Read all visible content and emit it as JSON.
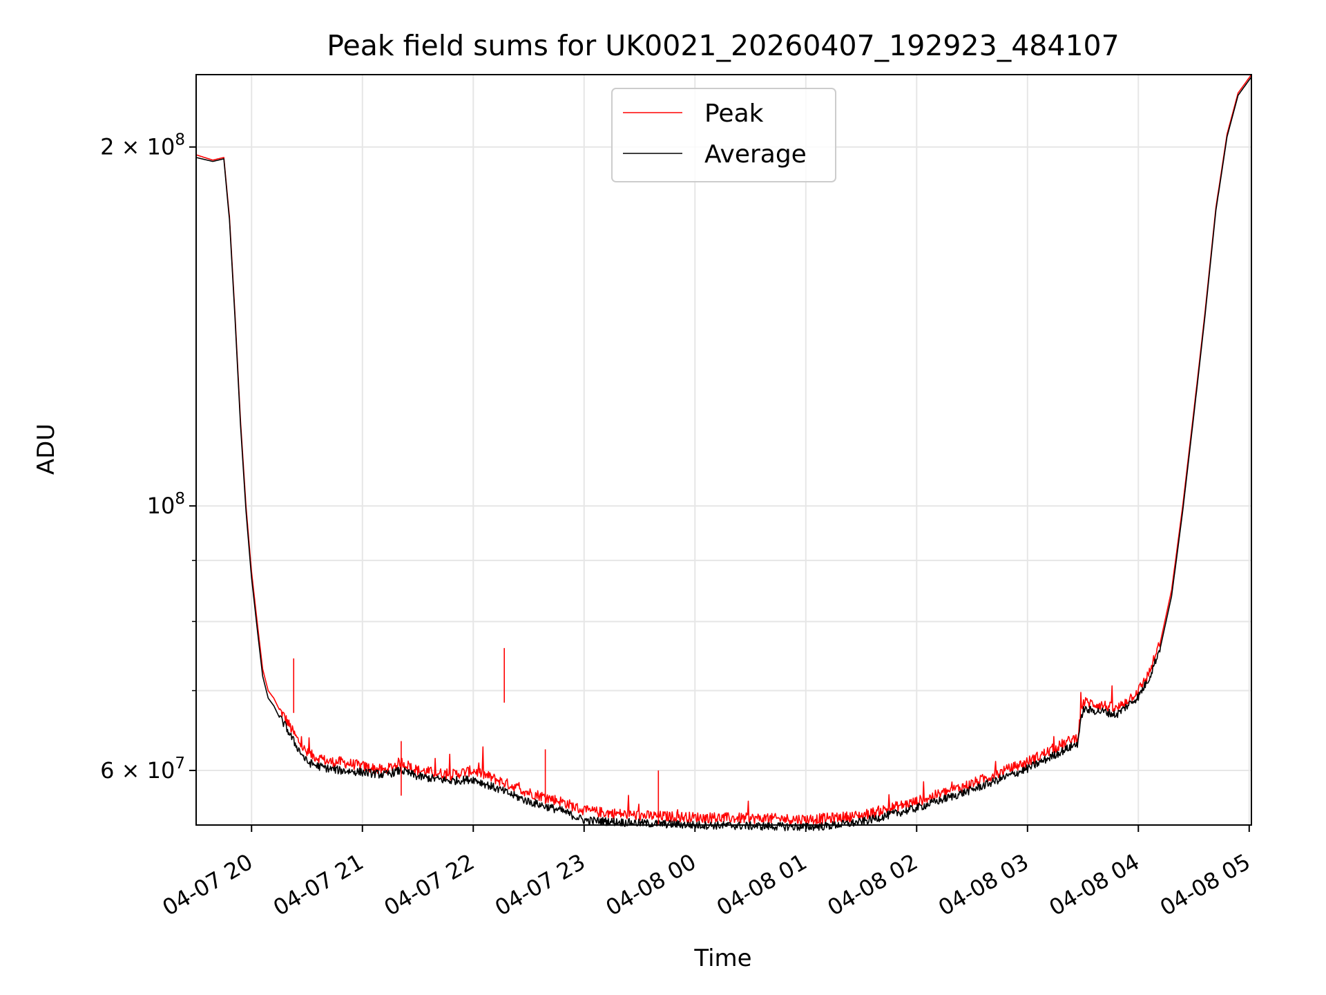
{
  "chart_data": {
    "type": "line",
    "title": "Peak field sums for UK0021_20260407_192923_484107",
    "xlabel": "Time",
    "ylabel": "ADU",
    "yscale": "log",
    "xlim_hours": [
      -0.5,
      9.02
    ],
    "ylim": [
      54000000,
      230000000
    ],
    "grid": true,
    "legend_position": "top-center",
    "x_ticks": [
      {
        "label": "04-07 20",
        "hours": 0
      },
      {
        "label": "04-07 21",
        "hours": 1
      },
      {
        "label": "04-07 22",
        "hours": 2
      },
      {
        "label": "04-07 23",
        "hours": 3
      },
      {
        "label": "04-08 00",
        "hours": 4
      },
      {
        "label": "04-08 01",
        "hours": 5
      },
      {
        "label": "04-08 02",
        "hours": 6
      },
      {
        "label": "04-08 03",
        "hours": 7
      },
      {
        "label": "04-08 04",
        "hours": 8
      },
      {
        "label": "04-08 05",
        "hours": 9
      }
    ],
    "y_major_ticks": [
      {
        "label": "2 × 10⁸",
        "base": "2 × 10",
        "exp": "8",
        "value": 200000000
      },
      {
        "label": "10⁸",
        "base": "10",
        "exp": "8",
        "value": 100000000
      },
      {
        "label": "6 × 10⁷",
        "base": "6 × 10",
        "exp": "7",
        "value": 60000000
      }
    ],
    "y_minor_ticks": [
      90000000,
      80000000,
      70000000
    ],
    "x_units": "hours since 2026-04-07 20:00",
    "series": [
      {
        "name": "Peak",
        "color": "#ff0000",
        "x": [
          -0.5,
          -0.35,
          -0.25,
          -0.2,
          -0.15,
          -0.1,
          -0.05,
          0.0,
          0.05,
          0.1,
          0.15,
          0.2,
          0.25,
          0.3,
          0.4,
          0.5,
          0.6,
          0.7,
          0.8,
          1.0,
          1.2,
          1.35,
          1.5,
          1.8,
          2.0,
          2.3,
          2.5,
          2.8,
          3.0,
          3.5,
          4.0,
          4.5,
          5.0,
          5.2,
          5.5,
          6.0,
          6.5,
          7.0,
          7.3,
          7.45,
          7.5,
          7.7,
          7.8,
          8.0,
          8.1,
          8.2,
          8.3,
          8.4,
          8.5,
          8.6,
          8.7,
          8.8,
          8.9,
          9.02
        ],
        "values": [
          197000000,
          195000000,
          196000000,
          175000000,
          145000000,
          118000000,
          100000000,
          88000000,
          80000000,
          73000000,
          70000000,
          69000000,
          67500000,
          66500000,
          64000000,
          62000000,
          61500000,
          61000000,
          61000000,
          60500000,
          60000000,
          61000000,
          60000000,
          59500000,
          60000000,
          58500000,
          57500000,
          56500000,
          55500000,
          55000000,
          54800000,
          54700000,
          54600000,
          54700000,
          55000000,
          56500000,
          58500000,
          61000000,
          63000000,
          64000000,
          68500000,
          68000000,
          67500000,
          70000000,
          72500000,
          77000000,
          85000000,
          100000000,
          120000000,
          145000000,
          178000000,
          205000000,
          222000000,
          230000000
        ]
      },
      {
        "name": "Average",
        "color": "#000000",
        "x": [
          -0.5,
          -0.35,
          -0.25,
          -0.2,
          -0.15,
          -0.1,
          -0.05,
          0.0,
          0.05,
          0.1,
          0.15,
          0.2,
          0.25,
          0.3,
          0.4,
          0.5,
          0.6,
          0.7,
          0.8,
          1.0,
          1.2,
          1.35,
          1.5,
          1.8,
          2.0,
          2.3,
          2.5,
          2.8,
          3.0,
          3.5,
          4.0,
          4.5,
          5.0,
          5.2,
          5.5,
          6.0,
          6.5,
          7.0,
          7.3,
          7.45,
          7.5,
          7.7,
          7.8,
          8.0,
          8.1,
          8.2,
          8.3,
          8.4,
          8.5,
          8.6,
          8.7,
          8.8,
          8.9,
          9.02
        ],
        "values": [
          196000000,
          194500000,
          195500000,
          174000000,
          144000000,
          117000000,
          99000000,
          87000000,
          79000000,
          72000000,
          69000000,
          68000000,
          66500000,
          65500000,
          63000000,
          61000000,
          60500000,
          60200000,
          60000000,
          59800000,
          59500000,
          60000000,
          59300000,
          58800000,
          59000000,
          57500000,
          56500000,
          55500000,
          54500000,
          54200000,
          54000000,
          53900000,
          53800000,
          53900000,
          54300000,
          55800000,
          57800000,
          60200000,
          62200000,
          63200000,
          67500000,
          67200000,
          66800000,
          69200000,
          71800000,
          76200000,
          84000000,
          99000000,
          119000000,
          144000000,
          177000000,
          204000000,
          221000000,
          229000000
        ]
      }
    ]
  }
}
